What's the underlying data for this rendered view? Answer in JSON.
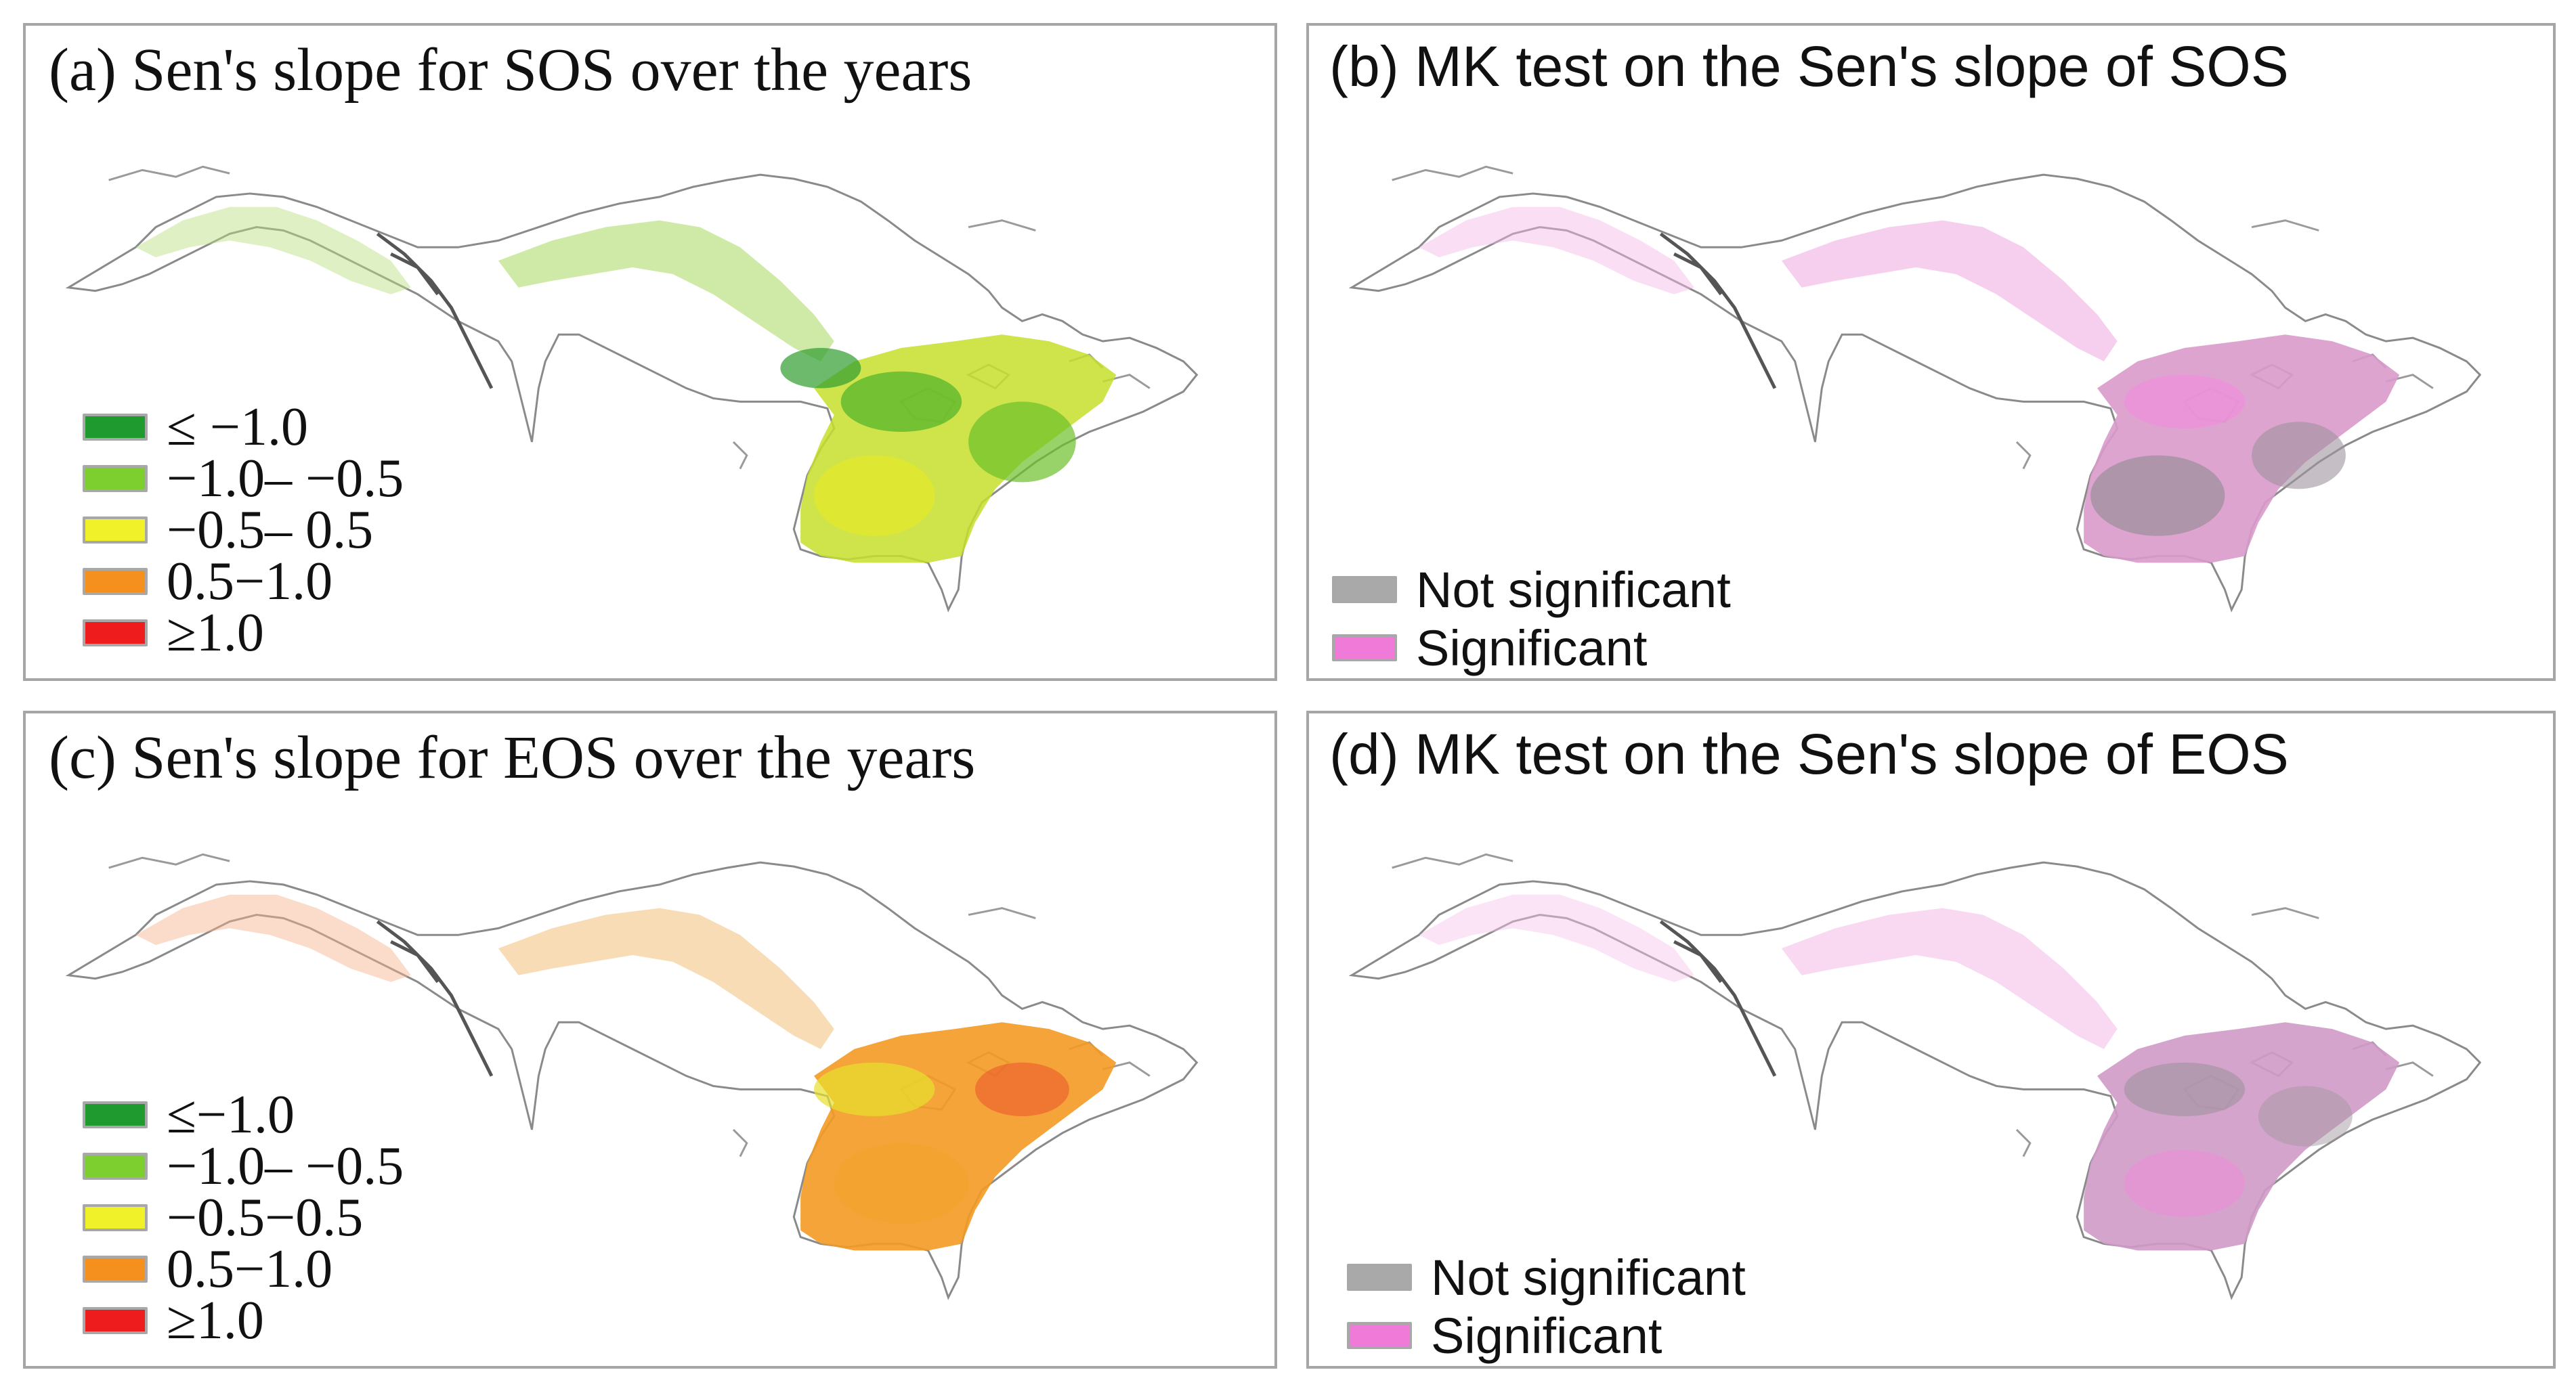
{
  "figure": {
    "panels": [
      {
        "title": "(a) Sen's slope for SOS over the years",
        "legend": [
          {
            "label": "≤ −1.0",
            "color": "#1f9a2e"
          },
          {
            "label": "−1.0– −0.5",
            "color": "#7ccf2f"
          },
          {
            "label": "−0.5– 0.5",
            "color": "#f1f12a"
          },
          {
            "label": "0.5−1.0",
            "color": "#f5901f"
          },
          {
            "label": "≥1.0",
            "color": "#ee1c1c"
          }
        ]
      },
      {
        "title": "(b) MK test on the Sen's slope of SOS",
        "legend": [
          {
            "label": "Not significant",
            "color": "#a9a9a9"
          },
          {
            "label": "Significant",
            "color": "#f07ad8"
          }
        ]
      },
      {
        "title": "(c) Sen's slope for EOS over the years",
        "legend": [
          {
            "label": "≤−1.0",
            "color": "#1f9a2e"
          },
          {
            "label": "−1.0– −0.5",
            "color": "#7ccf2f"
          },
          {
            "label": "−0.5−0.5",
            "color": "#f1f12a"
          },
          {
            "label": "0.5−1.0",
            "color": "#f5901f"
          },
          {
            "label": "≥1.0",
            "color": "#ee1c1c"
          }
        ]
      },
      {
        "title": "(d) MK test on the Sen's slope of EOS",
        "legend": [
          {
            "label": "Not significant",
            "color": "#a9a9a9"
          },
          {
            "label": "Significant",
            "color": "#f07ad8"
          }
        ]
      }
    ]
  }
}
